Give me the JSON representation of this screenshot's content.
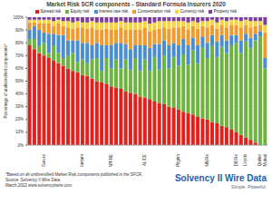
{
  "chart_data": {
    "type": "bar",
    "stacked": true,
    "title": "Market Risk SCR components - Standard Formula Insurers 2020",
    "y_label": "Percentage of undiversified components*",
    "ylim": [
      0,
      100
    ],
    "yticks": [
      {
        "value": 0,
        "label": "0%"
      },
      {
        "value": 10,
        "label": "10%"
      },
      {
        "value": 20,
        "label": "20%"
      },
      {
        "value": 30,
        "label": "30%"
      },
      {
        "value": 40,
        "label": "40%"
      },
      {
        "value": 50,
        "label": "50%"
      },
      {
        "value": 60,
        "label": "60%"
      },
      {
        "value": 70,
        "label": "70%"
      },
      {
        "value": 80,
        "label": "80%"
      },
      {
        "value": 90,
        "label": "90%"
      },
      {
        "value": 100,
        "label": "100%"
      }
    ],
    "grid": true,
    "legend": "top",
    "categories": [
      null,
      null,
      null,
      "Gen.re",
      null,
      null,
      null,
      null,
      null,
      null,
      null,
      "Santam",
      null,
      null,
      null,
      null,
      null,
      "MAPFRE",
      null,
      null,
      null,
      null,
      null,
      null,
      "ALICE",
      null,
      null,
      null,
      null,
      null,
      null,
      "Pilgrim",
      null,
      null,
      null,
      null,
      null,
      "NN Re",
      null,
      null,
      null,
      null,
      null,
      "DB Re",
      null,
      "Lloyds",
      null,
      null,
      "Quilter",
      "Mutual"
    ],
    "series": [
      {
        "name": "Spread risk",
        "color": "#e3211c",
        "values": [
          78,
          75,
          72,
          70,
          68,
          66,
          64,
          62,
          60,
          58,
          57,
          55,
          54,
          52,
          50,
          49,
          48,
          46,
          45,
          44,
          42,
          41,
          40,
          38,
          37,
          36,
          34,
          33,
          32,
          30,
          29,
          28,
          26,
          25,
          24,
          22,
          21,
          20,
          18,
          17,
          15,
          14,
          12,
          10,
          8,
          6,
          4,
          2,
          0,
          0
        ]
      },
      {
        "name": "Equity risk",
        "color": "#6db33f",
        "values": [
          5,
          8,
          6,
          10,
          4,
          12,
          8,
          6,
          10,
          14,
          8,
          12,
          10,
          15,
          18,
          9,
          20,
          14,
          22,
          16,
          25,
          18,
          28,
          20,
          30,
          22,
          35,
          26,
          38,
          30,
          40,
          34,
          45,
          38,
          50,
          42,
          55,
          48,
          60,
          52,
          62,
          58,
          66,
          70,
          64,
          75,
          72,
          80,
          85,
          60
        ]
      },
      {
        "name": "Interest rate risk",
        "color": "#4a8ed0",
        "values": [
          7,
          10,
          12,
          8,
          15,
          9,
          14,
          18,
          12,
          10,
          17,
          13,
          16,
          11,
          12,
          20,
          10,
          18,
          13,
          20,
          12,
          16,
          10,
          20,
          11,
          18,
          10,
          20,
          12,
          18,
          11,
          16,
          12,
          15,
          10,
          14,
          9,
          12,
          8,
          12,
          9,
          10,
          8,
          6,
          10,
          6,
          8,
          5,
          4,
          8
        ]
      },
      {
        "name": "Concentration risk",
        "color": "#f29a2e",
        "values": [
          6,
          3,
          5,
          7,
          8,
          6,
          9,
          7,
          10,
          9,
          10,
          12,
          11,
          14,
          10,
          12,
          13,
          12,
          10,
          12,
          11,
          15,
          12,
          12,
          14,
          13,
          11,
          12,
          10,
          13,
          12,
          14,
          10,
          12,
          9,
          13,
          8,
          12,
          8,
          10,
          8,
          10,
          8,
          8,
          10,
          7,
          8,
          6,
          5,
          20
        ]
      },
      {
        "name": "Currency risk",
        "color": "#f6d23c",
        "values": [
          2,
          2,
          3,
          3,
          3,
          4,
          3,
          4,
          5,
          5,
          5,
          4,
          5,
          5,
          6,
          6,
          5,
          6,
          6,
          5,
          6,
          6,
          6,
          6,
          5,
          6,
          6,
          6,
          5,
          6,
          5,
          5,
          4,
          6,
          4,
          5,
          4,
          5,
          4,
          5,
          4,
          5,
          4,
          4,
          5,
          4,
          5,
          4,
          3,
          6
        ]
      },
      {
        "name": "Property risk",
        "color": "#7d3f9e",
        "values": [
          2,
          2,
          2,
          2,
          2,
          3,
          2,
          3,
          3,
          4,
          3,
          4,
          4,
          3,
          4,
          4,
          4,
          4,
          4,
          3,
          4,
          4,
          4,
          4,
          3,
          5,
          4,
          3,
          3,
          3,
          3,
          3,
          3,
          4,
          3,
          4,
          3,
          3,
          2,
          4,
          2,
          3,
          2,
          2,
          3,
          2,
          3,
          3,
          3,
          6
        ]
      }
    ],
    "annotations": {
      "footnote": [
        "*Based on all undiversified Market Risk components published in the SFCR.",
        "Source: Solvency II Wire Data",
        "March 2022 www.solvencyiiwire.com"
      ],
      "logo": [
        "Solvency II Wire Data",
        "Simple. Powerful."
      ]
    }
  }
}
